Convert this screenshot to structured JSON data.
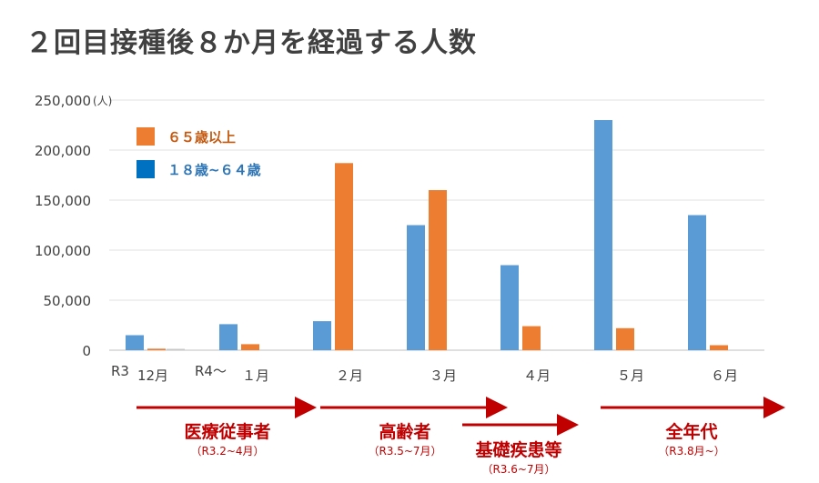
{
  "title": "２回目接種後８か月を経過する人数",
  "chart_data": {
    "type": "bar",
    "title": "２回目接種後８か月を経過する人数",
    "ylabel": "(人)",
    "ylim": [
      0,
      250000
    ],
    "yticks": [
      "0",
      "50,000",
      "100,000",
      "150,000",
      "200,000",
      "250,000"
    ],
    "ytick_values": [
      0,
      50000,
      100000,
      150000,
      200000,
      250000
    ],
    "grid": true,
    "legend_position": "top-left",
    "categories": [
      "12月",
      "１月",
      "２月",
      "３月",
      "４月",
      "５月",
      "６月"
    ],
    "year_labels": [
      "R3",
      "R4～"
    ],
    "series": [
      {
        "name": "１８歳~６４歳",
        "color": "#5b9bd5",
        "legend_color": "#0070c0",
        "values": [
          15000,
          26000,
          29000,
          125000,
          85000,
          230000,
          135000
        ]
      },
      {
        "name": "６５歳以上",
        "color": "#ed7d31",
        "values": [
          1500,
          6000,
          187000,
          160000,
          24000,
          22000,
          5000
        ]
      }
    ]
  },
  "phases": [
    {
      "label": "医療従事者",
      "period": "（R3.2~4月）"
    },
    {
      "label": "高齢者",
      "period": "（R3.5~7月）"
    },
    {
      "label": "基礎疾患等",
      "period": "（R3.6~7月）"
    },
    {
      "label": "全年代",
      "period": "（R3.8月~）"
    }
  ],
  "colors": {
    "arrow": "#c00000",
    "legend_orange_text": "#c55a11",
    "legend_blue_text": "#2e75b6"
  }
}
